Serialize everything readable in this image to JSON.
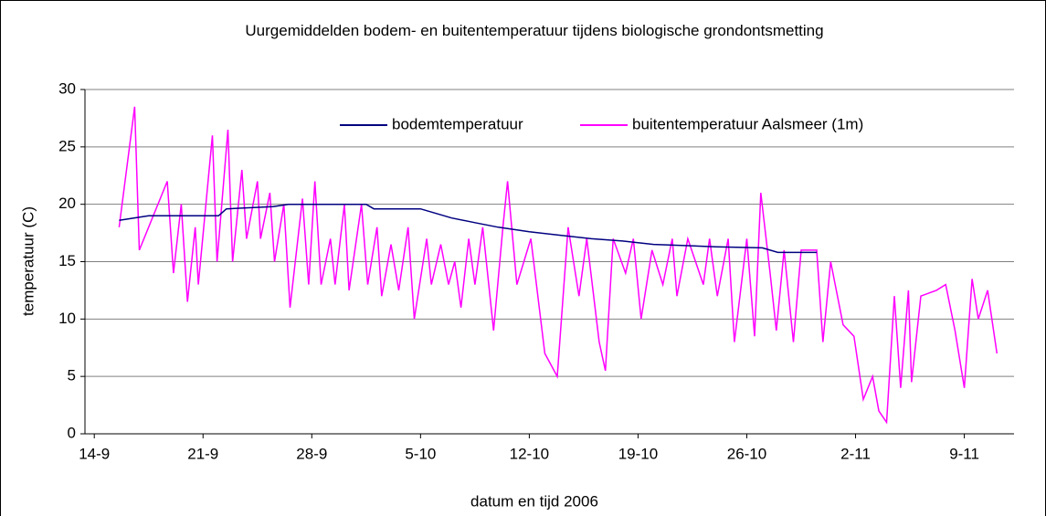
{
  "chart_data": {
    "type": "line",
    "title": "Uurgemiddelden bodem- en buitentemperatuur tijdens biologische grondontsmetting",
    "xlabel": "datum en tijd 2006",
    "ylabel": "temperatuur (C)",
    "xlim": [
      -0.6,
      59.2
    ],
    "xticks": [
      {
        "value": 0,
        "label": "14-9"
      },
      {
        "value": 7,
        "label": "21-9"
      },
      {
        "value": 14,
        "label": "28-9"
      },
      {
        "value": 21,
        "label": "5-10"
      },
      {
        "value": 28,
        "label": "12-10"
      },
      {
        "value": 35,
        "label": "19-10"
      },
      {
        "value": 42,
        "label": "26-10"
      },
      {
        "value": 49,
        "label": "2-11"
      },
      {
        "value": 56,
        "label": "9-11"
      }
    ],
    "ylim": [
      0,
      30
    ],
    "yticks": [
      0,
      5,
      10,
      15,
      20,
      25,
      30
    ],
    "grid": true,
    "legend": "top-right",
    "series": [
      {
        "name": "bodemtemperatuur",
        "color": "#000080",
        "x": [
          1.6,
          3.5,
          8,
          8.5,
          11.5,
          12.5,
          17.5,
          18,
          21,
          22,
          23,
          24.5,
          26,
          28,
          30,
          32,
          34,
          36,
          38,
          40,
          43,
          44,
          46.5
        ],
        "values": [
          18.6,
          19,
          19,
          19.6,
          19.8,
          20,
          20,
          19.6,
          19.6,
          19.2,
          18.8,
          18.4,
          18,
          17.6,
          17.3,
          17,
          16.8,
          16.5,
          16.4,
          16.3,
          16.2,
          15.8,
          15.8
        ]
      },
      {
        "name": "buitentemperatuur Aalsmeer (1m)",
        "color": "#ff00ff",
        "x": [
          1.6,
          2.6,
          2.9,
          4.7,
          5.1,
          5.6,
          6.0,
          6.5,
          6.7,
          7.6,
          7.9,
          8.6,
          8.9,
          9.5,
          9.8,
          10.5,
          10.7,
          11.3,
          11.6,
          12.2,
          12.6,
          13.4,
          13.8,
          14.2,
          14.6,
          15.2,
          15.5,
          16.1,
          16.4,
          17.2,
          17.6,
          18.2,
          18.5,
          19.1,
          19.6,
          20.2,
          20.6,
          21.4,
          21.7,
          22.3,
          22.8,
          23.2,
          23.6,
          24.1,
          24.5,
          25.0,
          25.7,
          26.3,
          26.6,
          27.2,
          28.1,
          29.0,
          29.8,
          30.5,
          31.2,
          31.7,
          32.5,
          32.9,
          33.4,
          34.2,
          34.7,
          35.2,
          35.9,
          36.6,
          37.2,
          37.5,
          38.2,
          39.2,
          39.6,
          40.1,
          40.8,
          41.2,
          42.0,
          42.5,
          42.9,
          43.5,
          43.9,
          44.4,
          45.0,
          45.5,
          46.5,
          46.9,
          47.4,
          48.2,
          48.9,
          49.5,
          50.1,
          50.5,
          51.0,
          51.5,
          51.9,
          52.4,
          52.6,
          53.2,
          54.2,
          54.8,
          55.4,
          56.0,
          56.5,
          56.9,
          57.5,
          58.1
        ],
        "values": [
          18,
          28.5,
          16,
          22,
          14,
          20,
          11.5,
          18,
          13,
          26,
          15,
          26.5,
          15,
          23,
          17,
          22,
          17,
          21,
          15,
          20,
          11,
          20.5,
          13,
          22,
          13,
          17,
          13,
          20,
          12.5,
          20,
          13,
          18,
          12,
          16.5,
          12.5,
          18,
          10,
          17,
          13,
          16.5,
          13,
          15,
          11,
          17,
          13,
          18,
          9,
          18,
          22,
          13,
          17,
          7,
          5,
          18,
          12,
          17,
          8,
          5.5,
          17,
          14,
          17,
          10,
          16,
          13,
          17,
          12,
          17,
          13,
          17,
          12,
          17,
          8,
          17,
          8.5,
          21,
          14,
          9,
          16,
          8,
          16,
          16,
          8,
          15,
          9.5,
          8.5,
          3,
          5,
          2,
          1,
          12,
          4,
          12.5,
          4.5,
          12,
          12.5,
          13,
          9,
          4,
          13.5,
          10,
          12.5,
          7
        ]
      }
    ]
  }
}
